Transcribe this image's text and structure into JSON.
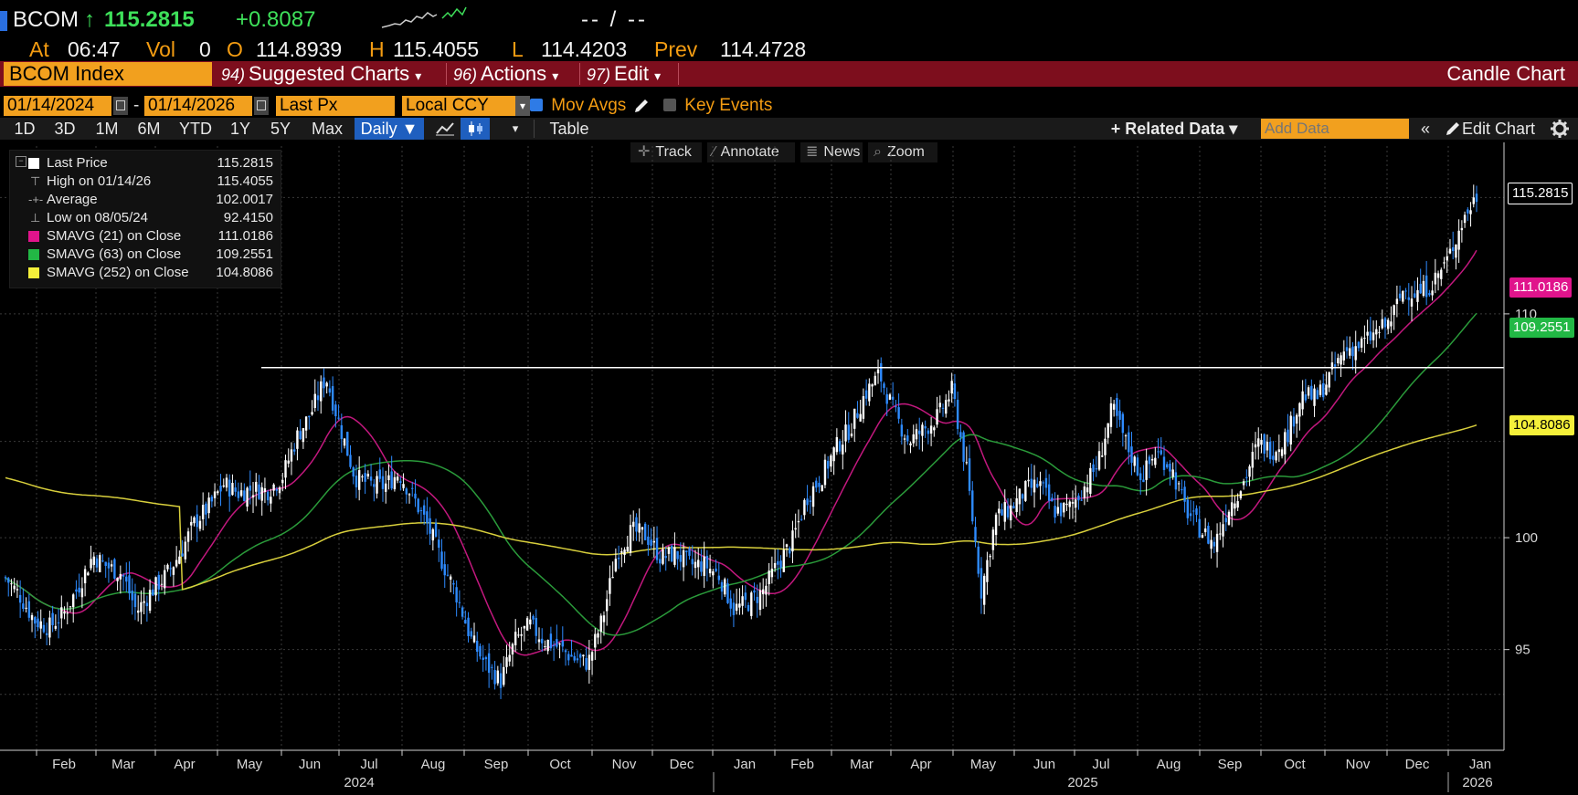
{
  "header": {
    "ticker": "BCOM",
    "arrow": "↑",
    "last": "115.2815",
    "change": "+0.8087",
    "dashes": "-- / --",
    "at_label": "At",
    "time": "06:47",
    "vol_label": "Vol",
    "vol": "0",
    "open_label": "O",
    "open": "114.8939",
    "high_label": "H",
    "high": "115.4055",
    "low_label": "L",
    "low": "114.4203",
    "prev_label": "Prev",
    "prev": "114.4728"
  },
  "menubar": {
    "ticker_field": "BCOM Index",
    "suggested_num": "94)",
    "suggested": "Suggested Charts",
    "actions_num": "96)",
    "actions": "Actions",
    "edit_num": "97)",
    "edit": "Edit",
    "chart_type": "Candle Chart"
  },
  "controls": {
    "start_date": "01/14/2024",
    "dash": "-",
    "end_date": "01/14/2026",
    "field": "Last Px",
    "currency": "Local CCY",
    "mov_avgs": "Mov Avgs",
    "key_events": "Key Events"
  },
  "toolbar": {
    "ranges": [
      "1D",
      "3D",
      "1M",
      "6M",
      "YTD",
      "1Y",
      "5Y",
      "Max"
    ],
    "frequency": "Daily ▼",
    "table": "Table",
    "related": "+ Related Data ▾",
    "add_data_placeholder": "Add Data",
    "edit_chart": "Edit Chart"
  },
  "chart_tools": {
    "track": "Track",
    "annotate": "Annotate",
    "news": "News",
    "zoom": "Zoom"
  },
  "legend": [
    {
      "label": "Last Price",
      "value": "115.2815",
      "color": "#ffffff"
    },
    {
      "label": "High on 01/14/26",
      "value": "115.4055",
      "color": ""
    },
    {
      "label": "Average",
      "value": "102.0017",
      "color": ""
    },
    {
      "label": "Low on 08/05/24",
      "value": "92.4150",
      "color": ""
    },
    {
      "label": "SMAVG (21)  on Close",
      "value": "111.0186",
      "color": "#e0148c"
    },
    {
      "label": "SMAVG (63)  on Close",
      "value": "109.2551",
      "color": "#22b845"
    },
    {
      "label": "SMAVG (252)  on Close",
      "value": "104.8086",
      "color": "#f5f03a"
    }
  ],
  "price_tags": {
    "last": "115.2815",
    "sma21": "111.0186",
    "sma63": "109.2551",
    "sma252": "104.8086"
  },
  "colors": {
    "sma21": "#c2187e",
    "sma63": "#2a9a3a",
    "sma252": "#d8cf3c",
    "up_candle": "#ffffff",
    "down_candle": "#2e8bff",
    "hline": "#ffffff"
  },
  "chart_data": {
    "type": "candlestick",
    "y_ticks": [
      95,
      100,
      110
    ],
    "ylim": [
      90.5,
      117.5
    ],
    "month_labels": [
      "Feb",
      "Mar",
      "Apr",
      "May",
      "Jun",
      "Jul",
      "Aug",
      "Sep",
      "Oct",
      "Nov",
      "Dec",
      "Jan",
      "Feb",
      "Mar",
      "Apr",
      "May",
      "Jun",
      "Jul",
      "Aug",
      "Sep",
      "Oct",
      "Nov",
      "Dec",
      "Jan"
    ],
    "year_labels": [
      "2024",
      "2025",
      "2026"
    ],
    "horizontal_line": 107.6,
    "last_price": 115.2815,
    "close_approx": [
      98.2,
      97.4,
      96.3,
      96.0,
      96.6,
      97.8,
      99.2,
      98.7,
      98.4,
      96.7,
      97.6,
      98.3,
      99.3,
      100.7,
      101.4,
      102.4,
      102.0,
      102.2,
      102.1,
      102.7,
      104.5,
      105.6,
      107.2,
      104.9,
      102.7,
      102.4,
      102.3,
      102.9,
      101.8,
      100.5,
      98.9,
      97.4,
      95.4,
      94.3,
      93.6,
      95.4,
      96.1,
      95.4,
      95.1,
      94.6,
      94.4,
      96.4,
      99.4,
      100.3,
      100.1,
      99.1,
      99.3,
      98.8,
      98.8,
      98.3,
      96.8,
      97.1,
      97.6,
      98.8,
      99.8,
      101.8,
      102.7,
      104.0,
      104.9,
      106.4,
      107.3,
      105.6,
      104.3,
      104.8,
      105.4,
      106.6,
      102.9,
      97.6,
      100.9,
      101.3,
      102.1,
      102.4,
      101.2,
      101.3,
      102.2,
      103.3,
      105.8,
      104.1,
      102.7,
      103.8,
      103.2,
      101.3,
      100.4,
      99.7,
      101.4,
      102.5,
      104.2,
      103.9,
      104.6,
      106.4,
      106.2,
      107.3,
      108.4,
      108.6,
      109.1,
      109.6,
      111.1,
      110.9,
      111.4,
      112.4,
      114.1,
      115.3
    ]
  }
}
